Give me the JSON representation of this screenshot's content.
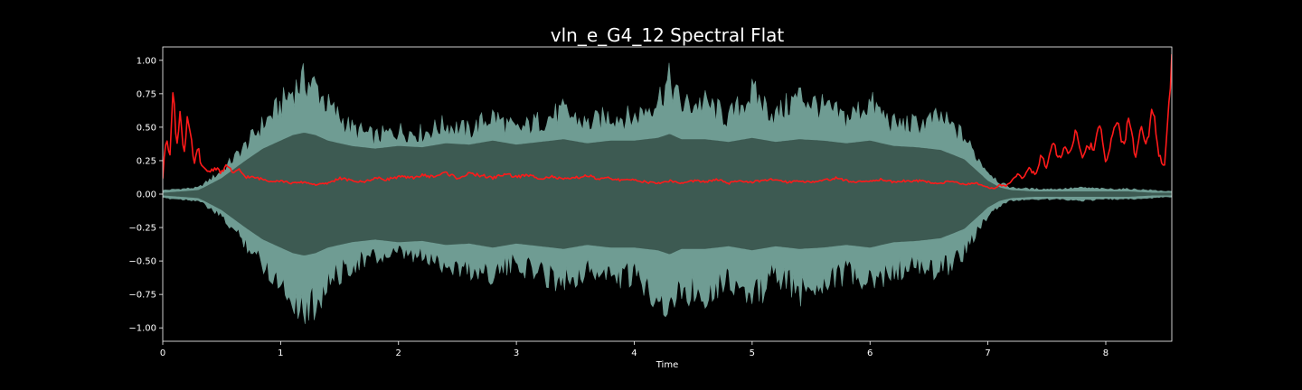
{
  "chart_data": {
    "type": "line",
    "title": "vln_e_G4_12 Spectral Flat",
    "xlabel": "Time",
    "ylabel": "",
    "xlim": [
      0,
      8.56
    ],
    "ylim": [
      -1.1,
      1.1
    ],
    "xticks": [
      0,
      1,
      2,
      3,
      4,
      5,
      6,
      7,
      8
    ],
    "yticks": [
      -1.0,
      -0.75,
      -0.5,
      -0.25,
      0.0,
      0.25,
      0.5,
      0.75,
      1.0
    ],
    "ytick_labels": [
      "−1.00",
      "−0.75",
      "−0.50",
      "−0.25",
      "0.00",
      "0.25",
      "0.50",
      "0.75",
      "1.00"
    ],
    "grid": false,
    "series": [
      {
        "kind": "waveform-envelope",
        "color": "#6f9c93",
        "inner_color": "#3d5a52",
        "x": [
          0,
          0.15,
          0.3,
          0.35,
          0.5,
          0.7,
          0.85,
          1.0,
          1.1,
          1.2,
          1.3,
          1.4,
          1.6,
          1.8,
          2.0,
          2.2,
          2.4,
          2.6,
          2.8,
          3.0,
          3.2,
          3.4,
          3.6,
          3.8,
          4.0,
          4.2,
          4.3,
          4.4,
          4.6,
          4.8,
          5.0,
          5.2,
          5.4,
          5.6,
          5.8,
          6.0,
          6.2,
          6.4,
          6.6,
          6.8,
          6.9,
          7.0,
          7.1,
          7.2,
          7.4,
          7.6,
          7.8,
          8.0,
          8.2,
          8.4,
          8.56
        ],
        "upper": [
          0.03,
          0.04,
          0.05,
          0.08,
          0.18,
          0.38,
          0.55,
          0.7,
          0.82,
          0.9,
          0.85,
          0.7,
          0.52,
          0.45,
          0.5,
          0.48,
          0.55,
          0.5,
          0.62,
          0.5,
          0.58,
          0.65,
          0.55,
          0.62,
          0.6,
          0.75,
          0.9,
          0.7,
          0.72,
          0.6,
          0.8,
          0.62,
          0.78,
          0.68,
          0.6,
          0.72,
          0.55,
          0.55,
          0.6,
          0.45,
          0.3,
          0.18,
          0.09,
          0.05,
          0.04,
          0.04,
          0.05,
          0.04,
          0.04,
          0.03,
          0.02
        ],
        "lower": [
          -0.03,
          -0.04,
          -0.05,
          -0.08,
          -0.18,
          -0.38,
          -0.55,
          -0.7,
          -0.82,
          -0.92,
          -0.85,
          -0.7,
          -0.55,
          -0.5,
          -0.48,
          -0.5,
          -0.55,
          -0.6,
          -0.62,
          -0.55,
          -0.62,
          -0.68,
          -0.6,
          -0.65,
          -0.65,
          -0.8,
          -0.92,
          -0.75,
          -0.78,
          -0.66,
          -0.84,
          -0.62,
          -0.78,
          -0.68,
          -0.62,
          -0.72,
          -0.6,
          -0.58,
          -0.6,
          -0.45,
          -0.3,
          -0.18,
          -0.09,
          -0.05,
          -0.04,
          -0.04,
          -0.05,
          -0.04,
          -0.04,
          -0.03,
          -0.02
        ],
        "inner_upper": [
          0.01,
          0.02,
          0.03,
          0.05,
          0.12,
          0.25,
          0.34,
          0.4,
          0.44,
          0.46,
          0.44,
          0.4,
          0.36,
          0.34,
          0.36,
          0.35,
          0.38,
          0.37,
          0.4,
          0.37,
          0.39,
          0.41,
          0.38,
          0.4,
          0.4,
          0.42,
          0.45,
          0.41,
          0.41,
          0.39,
          0.42,
          0.39,
          0.41,
          0.4,
          0.38,
          0.4,
          0.36,
          0.35,
          0.33,
          0.26,
          0.18,
          0.1,
          0.05,
          0.03,
          0.02,
          0.02,
          0.02,
          0.02,
          0.02,
          0.01,
          0.01
        ],
        "inner_lower": [
          -0.01,
          -0.02,
          -0.03,
          -0.05,
          -0.12,
          -0.25,
          -0.34,
          -0.4,
          -0.44,
          -0.46,
          -0.44,
          -0.4,
          -0.36,
          -0.34,
          -0.36,
          -0.35,
          -0.38,
          -0.37,
          -0.4,
          -0.37,
          -0.39,
          -0.41,
          -0.38,
          -0.4,
          -0.4,
          -0.42,
          -0.45,
          -0.41,
          -0.41,
          -0.39,
          -0.42,
          -0.39,
          -0.41,
          -0.4,
          -0.38,
          -0.4,
          -0.36,
          -0.35,
          -0.33,
          -0.26,
          -0.18,
          -0.1,
          -0.05,
          -0.03,
          -0.02,
          -0.02,
          -0.02,
          -0.02,
          -0.02,
          -0.01,
          -0.01
        ]
      },
      {
        "kind": "line",
        "color": "#ff1a1a",
        "x": [
          0,
          0.03,
          0.06,
          0.09,
          0.12,
          0.15,
          0.18,
          0.21,
          0.24,
          0.27,
          0.3,
          0.33,
          0.36,
          0.4,
          0.45,
          0.5,
          0.55,
          0.6,
          0.65,
          0.7,
          0.8,
          0.9,
          1.0,
          1.1,
          1.2,
          1.3,
          1.4,
          1.5,
          1.6,
          1.7,
          1.8,
          1.9,
          2.0,
          2.1,
          2.2,
          2.3,
          2.4,
          2.5,
          2.6,
          2.7,
          2.8,
          2.9,
          3.0,
          3.1,
          3.2,
          3.3,
          3.4,
          3.5,
          3.6,
          3.7,
          3.8,
          3.9,
          4.0,
          4.1,
          4.2,
          4.3,
          4.4,
          4.5,
          4.6,
          4.7,
          4.8,
          4.9,
          5.0,
          5.1,
          5.2,
          5.3,
          5.4,
          5.5,
          5.6,
          5.7,
          5.8,
          5.9,
          6.0,
          6.1,
          6.2,
          6.3,
          6.4,
          6.5,
          6.6,
          6.7,
          6.8,
          6.9,
          7.0,
          7.05,
          7.1,
          7.15,
          7.2,
          7.25,
          7.3,
          7.35,
          7.4,
          7.45,
          7.5,
          7.55,
          7.6,
          7.65,
          7.7,
          7.75,
          7.8,
          7.85,
          7.9,
          7.95,
          8.0,
          8.05,
          8.1,
          8.15,
          8.2,
          8.25,
          8.3,
          8.35,
          8.4,
          8.45,
          8.5,
          8.53,
          8.56
        ],
        "y": [
          0.12,
          0.45,
          0.3,
          0.78,
          0.35,
          0.65,
          0.28,
          0.55,
          0.4,
          0.22,
          0.35,
          0.2,
          0.18,
          0.17,
          0.2,
          0.16,
          0.22,
          0.15,
          0.18,
          0.13,
          0.12,
          0.1,
          0.1,
          0.08,
          0.09,
          0.07,
          0.08,
          0.12,
          0.1,
          0.09,
          0.12,
          0.11,
          0.13,
          0.12,
          0.14,
          0.13,
          0.16,
          0.12,
          0.15,
          0.14,
          0.12,
          0.15,
          0.13,
          0.14,
          0.12,
          0.13,
          0.11,
          0.12,
          0.14,
          0.11,
          0.12,
          0.1,
          0.11,
          0.09,
          0.08,
          0.1,
          0.08,
          0.1,
          0.09,
          0.11,
          0.08,
          0.1,
          0.09,
          0.1,
          0.11,
          0.09,
          0.1,
          0.09,
          0.1,
          0.12,
          0.1,
          0.09,
          0.1,
          0.11,
          0.09,
          0.1,
          0.1,
          0.09,
          0.08,
          0.1,
          0.07,
          0.08,
          0.05,
          0.04,
          0.07,
          0.06,
          0.1,
          0.15,
          0.12,
          0.2,
          0.14,
          0.28,
          0.2,
          0.42,
          0.25,
          0.35,
          0.3,
          0.48,
          0.26,
          0.38,
          0.32,
          0.52,
          0.22,
          0.4,
          0.55,
          0.35,
          0.6,
          0.28,
          0.5,
          0.38,
          0.65,
          0.3,
          0.2,
          0.62,
          1.0
        ]
      }
    ]
  }
}
